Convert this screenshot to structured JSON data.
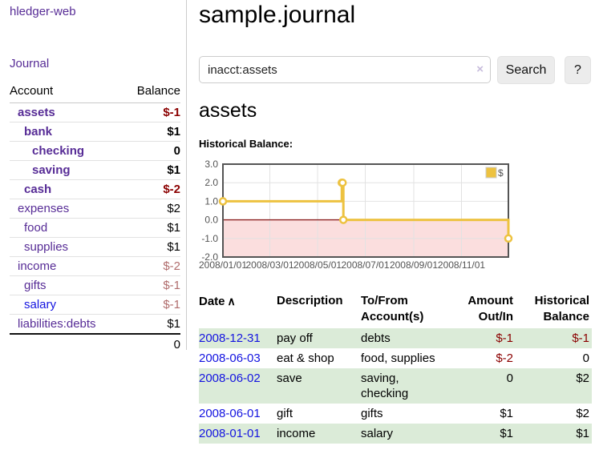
{
  "colors": {
    "link_purple": "#572c96",
    "link_blue": "#1414e0",
    "negative_strong": "#8b0000",
    "negative_soft": "#b06c6c",
    "row_stripe_green": "#dbebd8",
    "series_gold": "#edc240"
  },
  "sidebar": {
    "brand": "hledger-web",
    "nav": {
      "journal": "Journal"
    },
    "accounts_table": {
      "headers": {
        "account": "Account",
        "balance": "Balance"
      },
      "rows": [
        {
          "label": "assets",
          "balance": "$-1",
          "cls": "d1 em",
          "bal_cls": "em neg"
        },
        {
          "label": "bank",
          "balance": "$1",
          "cls": "d2 em",
          "bal_cls": "em"
        },
        {
          "label": "checking",
          "balance": "0",
          "cls": "d3 em",
          "bal_cls": "em"
        },
        {
          "label": "saving",
          "balance": "$1",
          "cls": "d3 em",
          "bal_cls": "em"
        },
        {
          "label": "cash",
          "balance": "$-2",
          "cls": "d2 em",
          "bal_cls": "em neg"
        },
        {
          "label": "expenses",
          "balance": "$2",
          "cls": "d1",
          "bal_cls": ""
        },
        {
          "label": "food",
          "balance": "$1",
          "cls": "d2",
          "bal_cls": ""
        },
        {
          "label": "supplies",
          "balance": "$1",
          "cls": "d2",
          "bal_cls": ""
        },
        {
          "label": "income",
          "balance": "$-2",
          "cls": "d1",
          "bal_cls": "negsoft"
        },
        {
          "label": "gifts",
          "balance": "$-1",
          "cls": "d2",
          "bal_cls": "negsoft"
        },
        {
          "label": "salary",
          "balance": "$-1",
          "cls": "d2 bluelink",
          "bal_cls": "negsoft"
        },
        {
          "label": "liabilities:debts",
          "balance": "$1",
          "cls": "d1",
          "bal_cls": ""
        }
      ],
      "total": "0"
    }
  },
  "header": {
    "title": "sample.journal"
  },
  "search": {
    "value": "inacct:assets",
    "clear_icon": "×",
    "button": "Search",
    "help_button": "?"
  },
  "main": {
    "account_heading": "assets",
    "chart_label": "Historical Balance:",
    "table": {
      "sort_icon": "∧",
      "headers": {
        "date": "Date",
        "description": "Description",
        "accounts": "To/From Account(s)",
        "amount": "Amount Out/In",
        "balance": "Historical Balance"
      },
      "rows": [
        {
          "date": "2008-12-31",
          "description": "pay off",
          "accounts": "debts",
          "amount": "$-1",
          "balance": "$-1",
          "amount_cls": "neg",
          "balance_cls": "neg"
        },
        {
          "date": "2008-06-03",
          "description": "eat & shop",
          "accounts": "food, supplies",
          "amount": "$-2",
          "balance": "0",
          "amount_cls": "neg",
          "balance_cls": ""
        },
        {
          "date": "2008-06-02",
          "description": "save",
          "accounts": "saving, checking",
          "amount": "0",
          "balance": "$2",
          "amount_cls": "",
          "balance_cls": ""
        },
        {
          "date": "2008-06-01",
          "description": "gift",
          "accounts": "gifts",
          "amount": "$1",
          "balance": "$2",
          "amount_cls": "",
          "balance_cls": ""
        },
        {
          "date": "2008-01-01",
          "description": "income",
          "accounts": "salary",
          "amount": "$1",
          "balance": "$1",
          "amount_cls": "",
          "balance_cls": ""
        }
      ]
    }
  },
  "chart_data": {
    "type": "line",
    "title": "Historical Balance:",
    "step": true,
    "series": [
      {
        "name": "$",
        "color": "#edc240",
        "points": [
          {
            "date": "2008-01-01",
            "day": 0,
            "value": 1
          },
          {
            "date": "2008-06-01",
            "day": 152,
            "value": 2
          },
          {
            "date": "2008-06-02",
            "day": 153,
            "value": 2
          },
          {
            "date": "2008-06-03",
            "day": 154,
            "value": 0
          },
          {
            "date": "2008-12-31",
            "day": 365,
            "value": -1
          }
        ]
      }
    ],
    "x_ticks": [
      {
        "label": "2008/01/01",
        "day": 0
      },
      {
        "label": "2008/03/01",
        "day": 60
      },
      {
        "label": "2008/05/01",
        "day": 121
      },
      {
        "label": "2008/07/01",
        "day": 182
      },
      {
        "label": "2008/09/01",
        "day": 244
      },
      {
        "label": "2008/11/01",
        "day": 305
      }
    ],
    "y_ticks": [
      3,
      2,
      1,
      0,
      -1,
      -2
    ],
    "ylim": [
      -2,
      3
    ],
    "xlim_days": [
      0,
      365
    ],
    "grid": true,
    "legend": {
      "position": "top-right",
      "label": "$"
    },
    "negative_fill": "#fbdede",
    "zero_line_color": "#8b1f1f",
    "border_color": "#545454",
    "grid_color": "#e2e2e2"
  }
}
